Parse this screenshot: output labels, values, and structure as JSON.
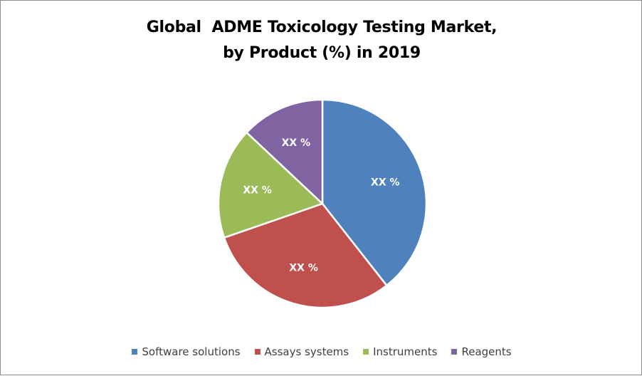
{
  "chart_data": {
    "type": "pie",
    "title": "Global  ADME Toxicology Testing Market, by Product (%) in 2019",
    "title_lines": [
      "Global  ADME Toxicology Testing Market,",
      "by Product (%) in 2019"
    ],
    "categories": [
      "Software solutions",
      "Assays systems",
      "Instruments",
      "Reagents"
    ],
    "values": [
      39.4,
      30.3,
      17.3,
      13.0
    ],
    "data_labels": [
      "XX %",
      "XX %",
      "XX %",
      "XX %"
    ],
    "colors": [
      "#4f81bd",
      "#c0504d",
      "#9bbb59",
      "#8064a2"
    ],
    "start_angle_deg": 0,
    "direction": "clockwise",
    "legend_position": "bottom",
    "grid": false
  },
  "legend": {
    "items": [
      {
        "label": "Software solutions",
        "color": "#4f81bd"
      },
      {
        "label": "Assays systems",
        "color": "#c0504d"
      },
      {
        "label": "Instruments",
        "color": "#9bbb59"
      },
      {
        "label": "Reagents",
        "color": "#8064a2"
      }
    ]
  }
}
